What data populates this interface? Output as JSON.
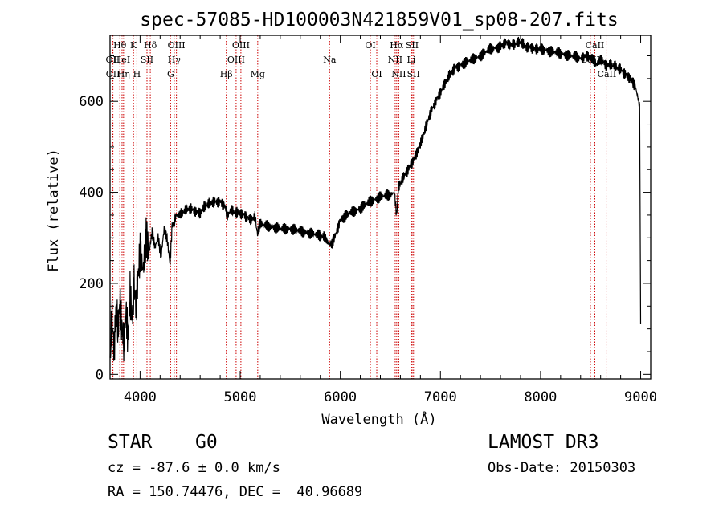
{
  "chart_data": {
    "type": "line",
    "title": "spec-57085-HD100003N421859V01_sp08-207.fits",
    "xlabel": "Wavelength (Å)",
    "ylabel": "Flux (relative)",
    "xlim": [
      3700,
      9100
    ],
    "ylim": [
      -10,
      745
    ],
    "xticks": [
      4000,
      5000,
      6000,
      7000,
      8000,
      9000
    ],
    "yticks": [
      0,
      200,
      400,
      600
    ],
    "series": [
      {
        "name": "flux",
        "x": [
          3700,
          3720,
          3740,
          3760,
          3780,
          3800,
          3820,
          3840,
          3860,
          3880,
          3900,
          3920,
          3940,
          3960,
          3980,
          4000,
          4030,
          4060,
          4090,
          4120,
          4150,
          4180,
          4210,
          4240,
          4270,
          4300,
          4320,
          4340,
          4360,
          4400,
          4450,
          4500,
          4550,
          4600,
          4650,
          4700,
          4750,
          4800,
          4850,
          4870,
          4900,
          4950,
          5000,
          5050,
          5100,
          5150,
          5170,
          5200,
          5300,
          5400,
          5500,
          5600,
          5700,
          5800,
          5850,
          5890,
          5920,
          5950,
          6000,
          6100,
          6200,
          6300,
          6400,
          6500,
          6540,
          6563,
          6580,
          6600,
          6650,
          6700,
          6750,
          6800,
          6850,
          6900,
          6950,
          7000,
          7050,
          7100,
          7150,
          7200,
          7300,
          7400,
          7500,
          7600,
          7650,
          7700,
          7750,
          7800,
          7850,
          7900,
          7950,
          8000,
          8100,
          8200,
          8300,
          8400,
          8450,
          8500,
          8540,
          8560,
          8600,
          8650,
          8700,
          8750,
          8800,
          8850,
          8900,
          8950,
          8990,
          9000
        ],
        "y": [
          40,
          120,
          60,
          150,
          90,
          170,
          100,
          60,
          140,
          80,
          180,
          120,
          200,
          150,
          220,
          260,
          230,
          290,
          270,
          310,
          280,
          300,
          260,
          320,
          300,
          240,
          330,
          330,
          350,
          350,
          360,
          365,
          360,
          355,
          370,
          375,
          380,
          380,
          370,
          345,
          360,
          355,
          355,
          350,
          340,
          345,
          310,
          330,
          325,
          320,
          320,
          315,
          310,
          305,
          300,
          285,
          290,
          305,
          340,
          355,
          365,
          380,
          390,
          395,
          400,
          350,
          410,
          420,
          440,
          460,
          480,
          505,
          540,
          575,
          600,
          620,
          640,
          660,
          675,
          680,
          690,
          700,
          715,
          720,
          730,
          725,
          725,
          730,
          720,
          720,
          715,
          715,
          710,
          705,
          700,
          695,
          700,
          695,
          690,
          680,
          695,
          680,
          680,
          675,
          670,
          660,
          650,
          630,
          590,
          110
        ]
      }
    ],
    "line_labels": [
      {
        "label": "Hθ",
        "wl": 3798,
        "row": 0
      },
      {
        "label": "OII",
        "wl": 3727,
        "row": 1
      },
      {
        "label": "OII",
        "wl": 3729,
        "row": 2
      },
      {
        "label": "HeI",
        "wl": 3820,
        "row": 1
      },
      {
        "label": "Hη",
        "wl": 3835,
        "row": 2
      },
      {
        "label": "K",
        "wl": 3934,
        "row": 0
      },
      {
        "label": "SII",
        "wl": 4069,
        "row": 1
      },
      {
        "label": "H",
        "wl": 3968,
        "row": 2
      },
      {
        "label": "Hδ",
        "wl": 4102,
        "row": 0
      },
      {
        "label": "OIII",
        "wl": 4363,
        "row": 0
      },
      {
        "label": "Hγ",
        "wl": 4341,
        "row": 1
      },
      {
        "label": "G",
        "wl": 4305,
        "row": 2
      },
      {
        "label": "OIII",
        "wl": 5007,
        "row": 0
      },
      {
        "label": "OIII",
        "wl": 4959,
        "row": 1
      },
      {
        "label": "Hβ",
        "wl": 4861,
        "row": 2
      },
      {
        "label": "Mg",
        "wl": 5175,
        "row": 2
      },
      {
        "label": "Na",
        "wl": 5893,
        "row": 1
      },
      {
        "label": "OI",
        "wl": 6300,
        "row": 0
      },
      {
        "label": "OI",
        "wl": 6364,
        "row": 2
      },
      {
        "label": "Hα",
        "wl": 6563,
        "row": 0
      },
      {
        "label": "SII",
        "wl": 6717,
        "row": 0
      },
      {
        "label": "NII",
        "wl": 6548,
        "row": 1
      },
      {
        "label": "Li",
        "wl": 6708,
        "row": 1
      },
      {
        "label": "NII",
        "wl": 6584,
        "row": 2
      },
      {
        "label": "SII",
        "wl": 6731,
        "row": 2
      },
      {
        "label": "CaII",
        "wl": 8542,
        "row": 0
      },
      {
        "label": "CaII",
        "wl": 8498,
        "row": 1
      },
      {
        "label": "CaII",
        "wl": 8662,
        "row": 2
      }
    ]
  },
  "info": {
    "object_class": "STAR",
    "subclass": "G0",
    "survey": "LAMOST DR3",
    "cz": "cz = -87.6 ± 0.0 km/s",
    "obs_date": "Obs-Date: 20150303",
    "coords": "RA = 150.74476, DEC =  40.96689"
  }
}
